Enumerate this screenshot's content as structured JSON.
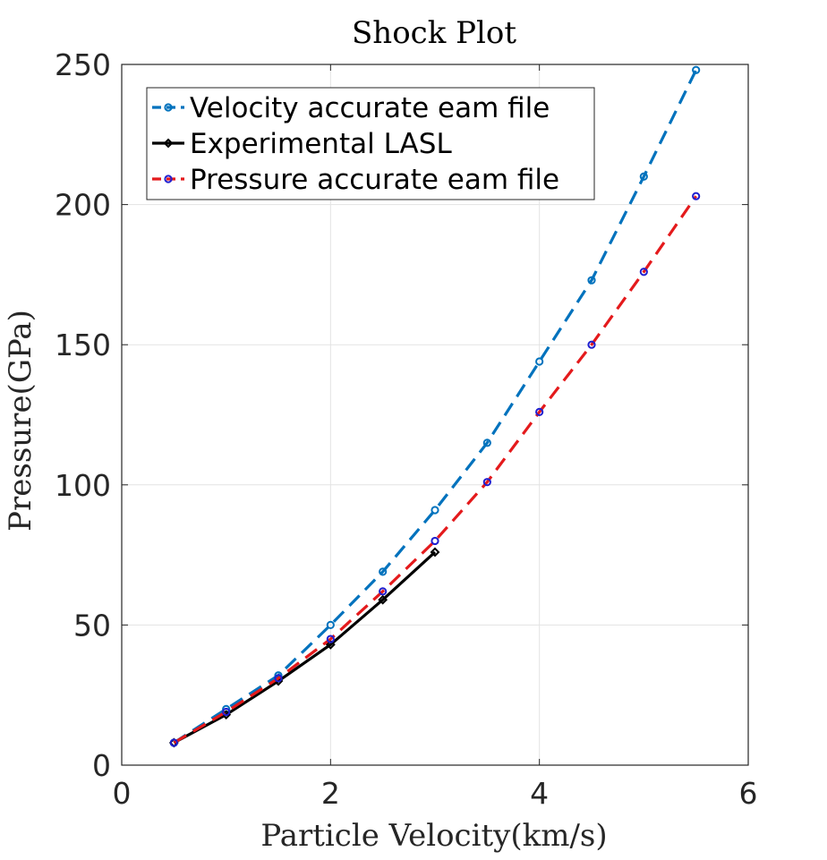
{
  "chart_data": {
    "type": "line",
    "title": "Shock Plot",
    "xlabel": "Particle Velocity(km/s)",
    "ylabel": "Pressure(GPa)",
    "xlim": [
      0,
      6
    ],
    "ylim": [
      0,
      250
    ],
    "xticks": [
      "0",
      "2",
      "4",
      "6"
    ],
    "yticks": [
      "0",
      "50",
      "100",
      "150",
      "200",
      "250"
    ],
    "grid": true,
    "legend_position": "top-left",
    "series": [
      {
        "name": "Velocity accurate eam file",
        "color": "#0072bd",
        "line_style": "dashed",
        "marker": "circle",
        "marker_color": "#0072bd",
        "x": [
          0.5,
          1.0,
          1.5,
          2.0,
          2.5,
          3.0,
          3.5,
          4.0,
          4.5,
          5.0,
          5.5
        ],
        "y": [
          8,
          20,
          32,
          50,
          69,
          91,
          115,
          144,
          173,
          210,
          248
        ]
      },
      {
        "name": "Experimental LASL",
        "color": "#000000",
        "line_style": "solid",
        "marker": "diamond",
        "marker_color": "#000000",
        "x": [
          0.5,
          1.0,
          1.5,
          2.0,
          2.5,
          3.0
        ],
        "y": [
          8,
          18,
          30,
          43,
          59,
          76
        ]
      },
      {
        "name": "Pressure accurate eam file",
        "color": "#e41a1c",
        "line_style": "dashed",
        "marker": "circle",
        "marker_color": "#1f1fd0",
        "x": [
          0.5,
          1.0,
          1.5,
          2.0,
          2.5,
          3.0,
          3.5,
          4.0,
          4.5,
          5.0,
          5.5
        ],
        "y": [
          8,
          19,
          31,
          45,
          62,
          80,
          101,
          126,
          150,
          176,
          203
        ]
      }
    ]
  }
}
